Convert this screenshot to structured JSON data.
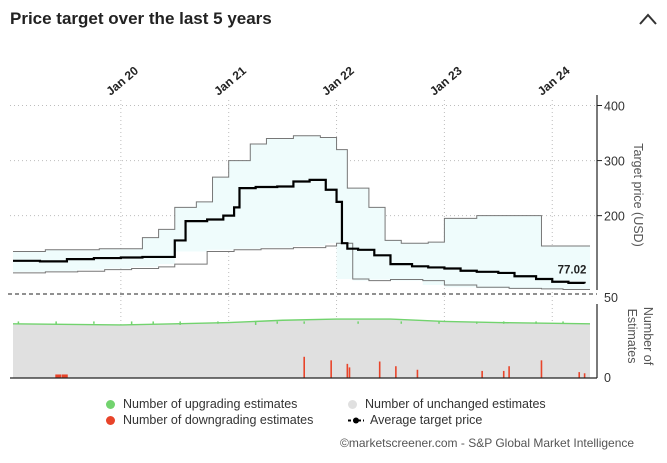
{
  "header": {
    "title": "Price target over the last 5 years",
    "collapse_icon": "chevron-up-icon"
  },
  "chart_data": {
    "type": "line",
    "x_tick_labels": [
      "Jan 20",
      "Jan 21",
      "Jan 22",
      "Jan 23",
      "Jan 24"
    ],
    "top_panel": {
      "ylabel": "Target price (USD)",
      "y_ticks": [
        400,
        300,
        200
      ],
      "ylim": [
        65,
        410
      ],
      "last_value_label": "77.02",
      "series": [
        {
          "name": "Average target price",
          "color": "#000000",
          "points": [
            [
              2019.0,
              118
            ],
            [
              2019.25,
              117
            ],
            [
              2019.5,
              121
            ],
            [
              2019.75,
              123
            ],
            [
              2020.0,
              124
            ],
            [
              2020.2,
              125
            ],
            [
              2020.35,
              125
            ],
            [
              2020.5,
              155
            ],
            [
              2020.6,
              190
            ],
            [
              2020.8,
              193
            ],
            [
              2020.95,
              200
            ],
            [
              2021.05,
              215
            ],
            [
              2021.1,
              250
            ],
            [
              2021.25,
              252
            ],
            [
              2021.45,
              253
            ],
            [
              2021.6,
              262
            ],
            [
              2021.75,
              265
            ],
            [
              2021.9,
              247
            ],
            [
              2022.0,
              225
            ],
            [
              2022.05,
              150
            ],
            [
              2022.1,
              140
            ],
            [
              2022.2,
              138
            ],
            [
              2022.35,
              128
            ],
            [
              2022.5,
              112
            ],
            [
              2022.7,
              108
            ],
            [
              2022.85,
              106
            ],
            [
              2023.0,
              104
            ],
            [
              2023.15,
              100
            ],
            [
              2023.3,
              98
            ],
            [
              2023.5,
              96
            ],
            [
              2023.65,
              90
            ],
            [
              2023.85,
              85
            ],
            [
              2024.0,
              80
            ],
            [
              2024.15,
              78
            ],
            [
              2024.3,
              77.02
            ]
          ]
        },
        {
          "name": "High target",
          "color": "#777777",
          "points": [
            [
              2019.0,
              135
            ],
            [
              2019.3,
              138
            ],
            [
              2019.6,
              138
            ],
            [
              2019.8,
              140
            ],
            [
              2020.0,
              140
            ],
            [
              2020.2,
              160
            ],
            [
              2020.35,
              175
            ],
            [
              2020.5,
              215
            ],
            [
              2020.7,
              225
            ],
            [
              2020.85,
              270
            ],
            [
              2021.0,
              300
            ],
            [
              2021.2,
              330
            ],
            [
              2021.35,
              340
            ],
            [
              2021.6,
              345
            ],
            [
              2021.85,
              342
            ],
            [
              2022.0,
              320
            ],
            [
              2022.1,
              250
            ],
            [
              2022.3,
              215
            ],
            [
              2022.45,
              155
            ],
            [
              2022.6,
              150
            ],
            [
              2022.85,
              152
            ],
            [
              2023.0,
              195
            ],
            [
              2023.3,
              200
            ],
            [
              2023.6,
              200
            ],
            [
              2023.9,
              145
            ],
            [
              2024.2,
              145
            ],
            [
              2024.35,
              145
            ]
          ]
        },
        {
          "name": "Low target",
          "color": "#777777",
          "points": [
            [
              2019.0,
              96
            ],
            [
              2019.3,
              98
            ],
            [
              2019.6,
              99
            ],
            [
              2019.85,
              102
            ],
            [
              2020.1,
              104
            ],
            [
              2020.35,
              107
            ],
            [
              2020.5,
              112
            ],
            [
              2020.8,
              135
            ],
            [
              2021.05,
              138
            ],
            [
              2021.3,
              140
            ],
            [
              2021.6,
              142
            ],
            [
              2021.9,
              145
            ],
            [
              2022.0,
              150
            ],
            [
              2022.15,
              85
            ],
            [
              2022.3,
              82
            ],
            [
              2022.5,
              84
            ],
            [
              2022.8,
              82
            ],
            [
              2023.0,
              74
            ],
            [
              2023.3,
              70
            ],
            [
              2023.6,
              68
            ],
            [
              2023.9,
              67
            ],
            [
              2024.1,
              66
            ],
            [
              2024.35,
              66
            ]
          ]
        }
      ]
    },
    "bottom_panel": {
      "ylabel": "Number of Estimates",
      "y_ticks": [
        50,
        0
      ],
      "ylim": [
        0,
        56
      ],
      "legend": [
        {
          "name": "Number of upgrading estimates",
          "color": "#72d36e"
        },
        {
          "name": "Number of downgrading estimates",
          "color": "#e8442a"
        },
        {
          "name": "Number of unchanged estimates",
          "color": "#e0e0e0"
        },
        {
          "name": "Average target price",
          "color": "#000000"
        }
      ],
      "unchanged": [
        [
          2019.0,
          46
        ],
        [
          2020.0,
          45
        ],
        [
          2020.5,
          46
        ],
        [
          2021.0,
          47
        ],
        [
          2021.5,
          49
        ],
        [
          2022.0,
          50
        ],
        [
          2022.5,
          50
        ],
        [
          2023.0,
          48
        ],
        [
          2023.5,
          47
        ],
        [
          2024.35,
          46
        ]
      ],
      "upgrade_spikes": [
        [
          2019.05,
          2
        ],
        [
          2019.4,
          3
        ],
        [
          2019.75,
          2
        ],
        [
          2020.1,
          3
        ],
        [
          2020.3,
          2
        ],
        [
          2020.55,
          3
        ],
        [
          2020.9,
          2
        ],
        [
          2021.25,
          3
        ],
        [
          2021.45,
          2
        ],
        [
          2021.7,
          2
        ],
        [
          2022.2,
          2
        ],
        [
          2022.6,
          2
        ],
        [
          2022.95,
          2
        ],
        [
          2023.3,
          2
        ],
        [
          2023.55,
          2
        ],
        [
          2023.85,
          2
        ],
        [
          2024.1,
          2
        ]
      ],
      "downgrade_spikes": [
        [
          2019.42,
          3
        ],
        [
          2019.48,
          3
        ],
        [
          2021.7,
          18
        ],
        [
          2021.95,
          15
        ],
        [
          2022.1,
          12
        ],
        [
          2022.12,
          9
        ],
        [
          2022.4,
          14
        ],
        [
          2022.55,
          10
        ],
        [
          2022.75,
          7
        ],
        [
          2023.35,
          6
        ],
        [
          2023.55,
          6
        ],
        [
          2023.6,
          10
        ],
        [
          2023.9,
          15
        ],
        [
          2024.25,
          5
        ],
        [
          2024.3,
          4
        ]
      ]
    }
  },
  "credit": "©marketscreener.com - S&P Global Market Intelligence"
}
